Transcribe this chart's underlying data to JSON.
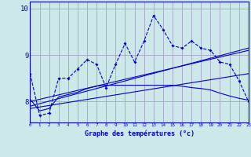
{
  "bg_color": "#cce8e8",
  "grid_color": "#aaaacc",
  "line_color": "#0000cc",
  "xlabel": "Graphe des températures (°c)",
  "xticks": [
    0,
    1,
    2,
    3,
    4,
    5,
    6,
    7,
    8,
    9,
    10,
    11,
    12,
    13,
    14,
    15,
    16,
    17,
    18,
    19,
    20,
    21,
    22,
    23
  ],
  "yticks": [
    8,
    9,
    10
  ],
  "ylim": [
    7.55,
    10.15
  ],
  "xlim": [
    0,
    23
  ],
  "series1_x": [
    0,
    1,
    2,
    3,
    4,
    5,
    6,
    7,
    8,
    9,
    10,
    11,
    12,
    13,
    14,
    15,
    16,
    17,
    18,
    19,
    20,
    21,
    22,
    23
  ],
  "series1_y": [
    8.6,
    7.7,
    7.75,
    8.5,
    8.5,
    8.7,
    8.9,
    8.8,
    8.3,
    8.8,
    9.25,
    8.85,
    9.3,
    9.85,
    9.55,
    9.2,
    9.15,
    9.3,
    9.15,
    9.1,
    8.85,
    8.8,
    8.45,
    8.0
  ],
  "series2_x": [
    0,
    1,
    2,
    3,
    4,
    5,
    6,
    7,
    8,
    9,
    10,
    11,
    12,
    13,
    14,
    15,
    16,
    17,
    18,
    19,
    20,
    21,
    22,
    23
  ],
  "series2_y": [
    8.05,
    7.8,
    7.85,
    8.1,
    8.15,
    8.2,
    8.28,
    8.33,
    8.35,
    8.35,
    8.35,
    8.35,
    8.35,
    8.35,
    8.35,
    8.35,
    8.33,
    8.3,
    8.28,
    8.25,
    8.18,
    8.12,
    8.07,
    8.03
  ],
  "series3_x": [
    0,
    23
  ],
  "series3_y": [
    7.85,
    8.6
  ],
  "series4_x": [
    0,
    23
  ],
  "series4_y": [
    7.9,
    9.15
  ],
  "series5_x": [
    0,
    23
  ],
  "series5_y": [
    8.0,
    9.1
  ]
}
